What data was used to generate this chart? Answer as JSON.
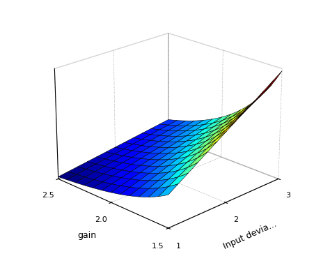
{
  "title": "",
  "xlabel": "Input devia...",
  "ylabel": "gain",
  "x_range": [
    1.0,
    3.0
  ],
  "y_range": [
    1.5,
    2.5
  ],
  "x_ticks": [
    1,
    2,
    3
  ],
  "y_ticks": [
    1.5,
    2.0,
    2.5
  ],
  "z_ticks": [],
  "colormap": "jet",
  "elev": 22,
  "azim": -135,
  "background_color": "#ffffff",
  "figsize": [
    4.74,
    3.67
  ],
  "dpi": 100,
  "rstride": 2,
  "cstride": 2
}
